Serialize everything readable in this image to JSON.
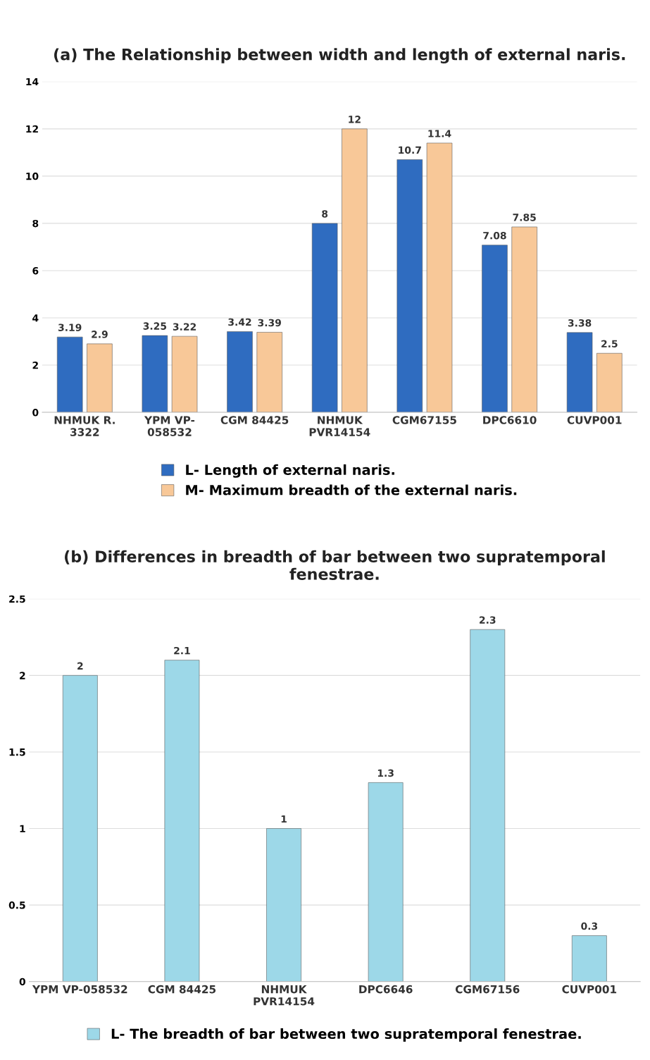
{
  "chart_data": [
    {
      "type": "bar",
      "title": "(a) The Relationship between width and length of external naris.",
      "categories": [
        "NHMUK R.\n3322",
        "YPM VP-\n058532",
        "CGM 84425",
        "NHMUK\nPVR14154",
        "CGM67155",
        "DPC6610",
        "CUVP001"
      ],
      "series": [
        {
          "name": "L- Length of external naris.",
          "color": "#2f6cc0",
          "values": [
            3.19,
            3.25,
            3.42,
            8,
            10.7,
            7.08,
            3.38
          ]
        },
        {
          "name": "M- Maximum breadth of the external naris.",
          "color": "#f8c898",
          "values": [
            2.9,
            3.22,
            3.39,
            12,
            11.4,
            7.85,
            2.5
          ]
        }
      ],
      "ylim": [
        0,
        14
      ],
      "yticks": [
        0,
        2,
        4,
        6,
        8,
        10,
        12,
        14
      ],
      "grid": "y",
      "legend": "bottom",
      "data_labels": true
    },
    {
      "type": "bar",
      "title": "(b) Differences in breadth of bar between two supratemporal fenestrae.",
      "categories": [
        "YPM VP-058532",
        "CGM 84425",
        "NHMUK\nPVR14154",
        "DPC6646",
        "CGM67156",
        "CUVP001"
      ],
      "series": [
        {
          "name": "L- The breadth of bar between two supratemporal fenestrae.",
          "color": "#9dd8e8",
          "values": [
            2,
            2.1,
            1,
            1.3,
            2.3,
            0.3
          ]
        }
      ],
      "ylim": [
        0,
        2.5
      ],
      "yticks": [
        0,
        0.5,
        1,
        1.5,
        2,
        2.5
      ],
      "grid": "y",
      "legend": "bottom",
      "data_labels": true
    }
  ]
}
